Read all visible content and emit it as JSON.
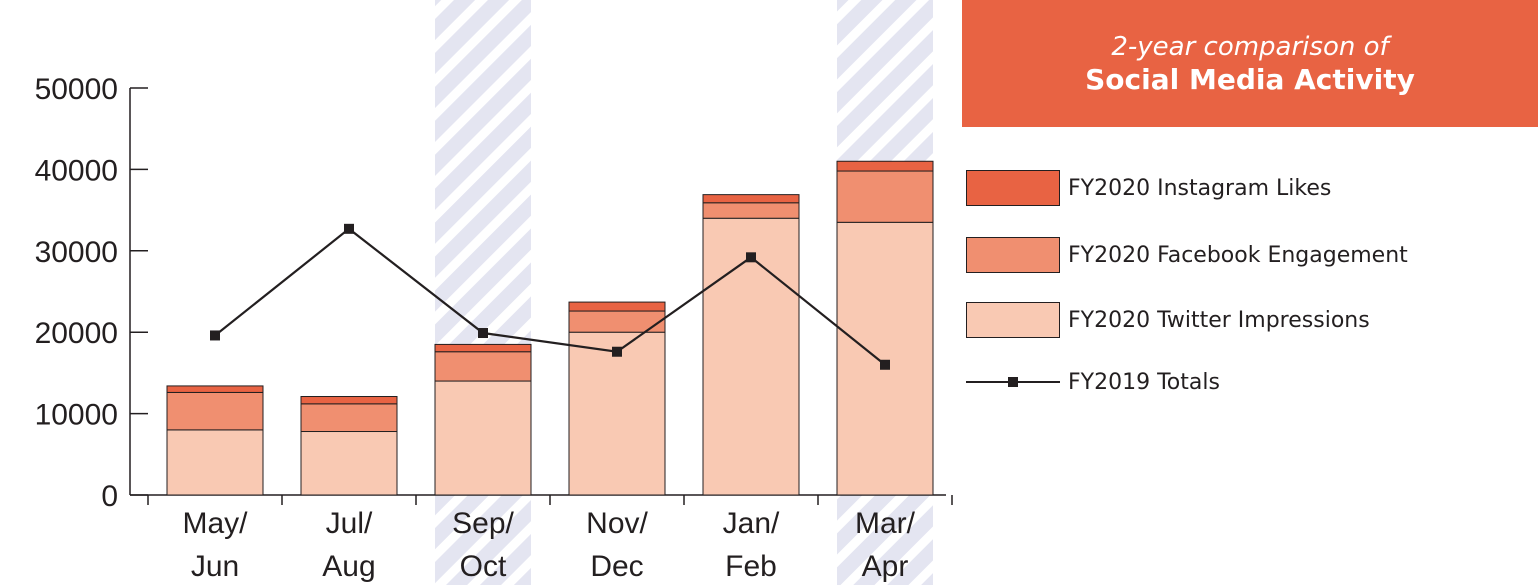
{
  "chart_data": {
    "type": "bar",
    "stacked": true,
    "title": "2-year comparison of",
    "subtitle": "Social Media Activity",
    "xlabel": "",
    "ylabel": "",
    "ylim": [
      0,
      50000
    ],
    "yticks": [
      0,
      10000,
      20000,
      30000,
      40000,
      50000
    ],
    "categories": [
      {
        "line1": "May/",
        "line2": "Jun"
      },
      {
        "line1": "Jul/",
        "line2": "Aug"
      },
      {
        "line1": "Sep/",
        "line2": "Oct"
      },
      {
        "line1": "Nov/",
        "line2": "Dec"
      },
      {
        "line1": "Jan/",
        "line2": "Feb"
      },
      {
        "line1": "Mar/",
        "line2": "Apr"
      }
    ],
    "highlighted_categories": [
      2,
      5
    ],
    "series": [
      {
        "name": "FY2020 Twitter Impressions",
        "kind": "bar",
        "color": "#f9c9b3",
        "values": [
          8000,
          7800,
          14000,
          20000,
          34000,
          33500
        ]
      },
      {
        "name": "FY2020 Facebook Engagement",
        "kind": "bar",
        "color": "#f08f70",
        "values": [
          4600,
          3400,
          3600,
          2600,
          1900,
          6300
        ]
      },
      {
        "name": "FY2020 Instagram Likes",
        "kind": "bar",
        "color": "#e86343",
        "values": [
          800,
          900,
          900,
          1100,
          1000,
          1200
        ]
      },
      {
        "name": "FY2019 Totals",
        "kind": "line",
        "color": "#231f20",
        "values": [
          19600,
          32700,
          19900,
          17600,
          29200,
          16000
        ]
      }
    ],
    "legend": {
      "placement": "right",
      "order": [
        "FY2020 Instagram Likes",
        "FY2020 Facebook Engagement",
        "FY2020 Twitter Impressions",
        "FY2019 Totals"
      ]
    },
    "grid": false
  }
}
